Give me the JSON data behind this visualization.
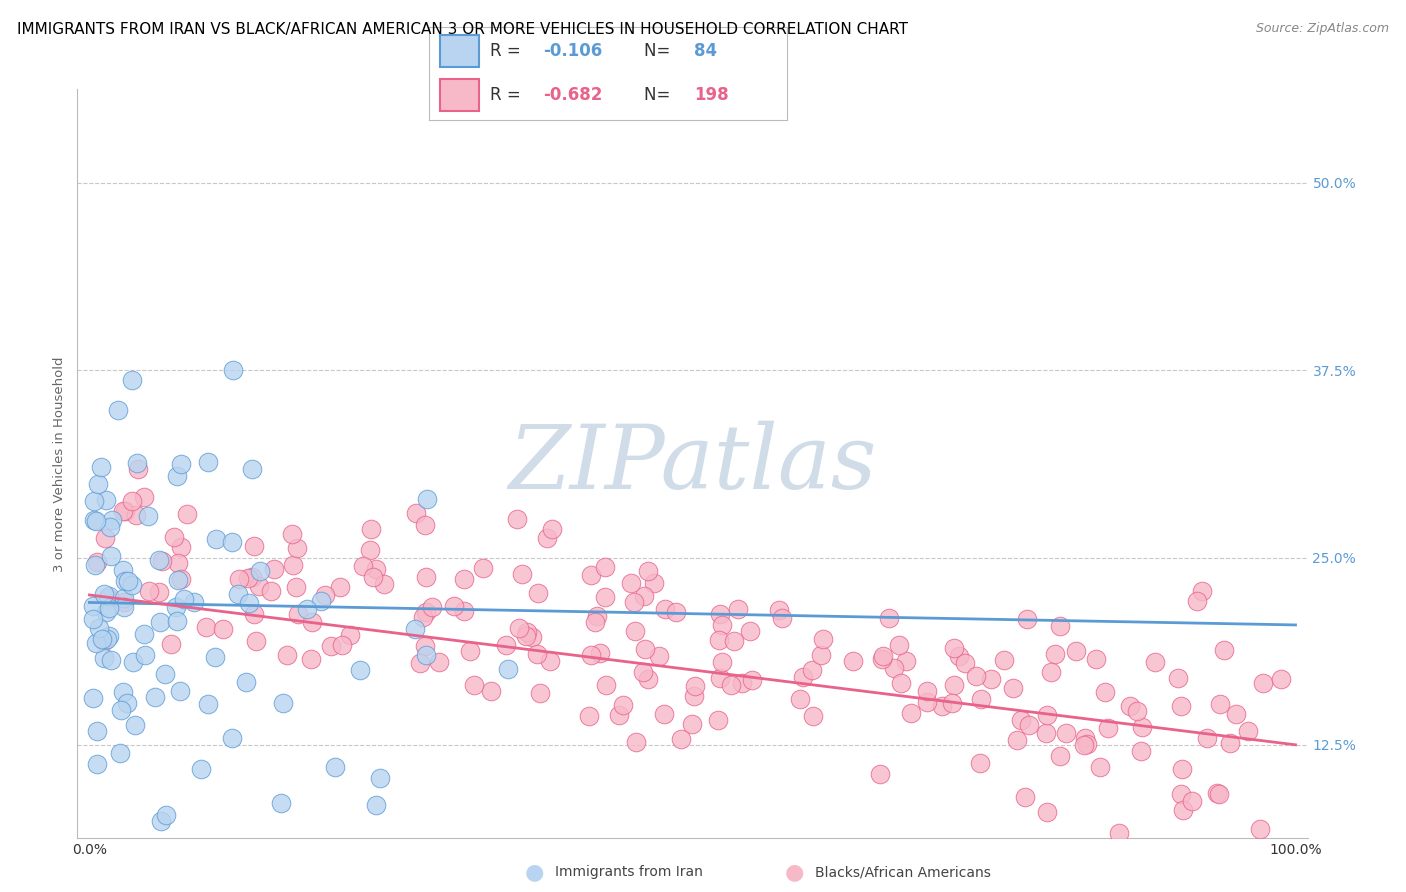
{
  "title": "IMMIGRANTS FROM IRAN VS BLACK/AFRICAN AMERICAN 3 OR MORE VEHICLES IN HOUSEHOLD CORRELATION CHART",
  "source": "Source: ZipAtlas.com",
  "ylabel": "3 or more Vehicles in Household",
  "xlim": [
    0.0,
    100.0
  ],
  "ylim": [
    6.25,
    56.25
  ],
  "yticks": [
    12.5,
    25.0,
    37.5,
    50.0
  ],
  "ytick_labels": [
    "12.5%",
    "25.0%",
    "37.5%",
    "50.0%"
  ],
  "xticks": [
    0.0,
    100.0
  ],
  "xtick_labels": [
    "0.0%",
    "100.0%"
  ],
  "blue_R": -0.106,
  "blue_N": 84,
  "pink_R": -0.682,
  "pink_N": 198,
  "blue_fill": "#b8d4f0",
  "pink_fill": "#f7b8c8",
  "blue_edge": "#5b9bd5",
  "pink_edge": "#e8628a",
  "blue_line": "#5b9bd5",
  "pink_line": "#e8628a",
  "watermark": "ZIPatlas",
  "watermark_color": "#d0dce8",
  "title_fontsize": 11,
  "label_fontsize": 9.5,
  "tick_fontsize": 10,
  "legend_labels": [
    "Immigrants from Iran",
    "Blacks/African Americans"
  ],
  "blue_line_start_y": 22.0,
  "blue_line_end_y": 20.5,
  "pink_line_start_y": 22.5,
  "pink_line_end_y": 12.5
}
